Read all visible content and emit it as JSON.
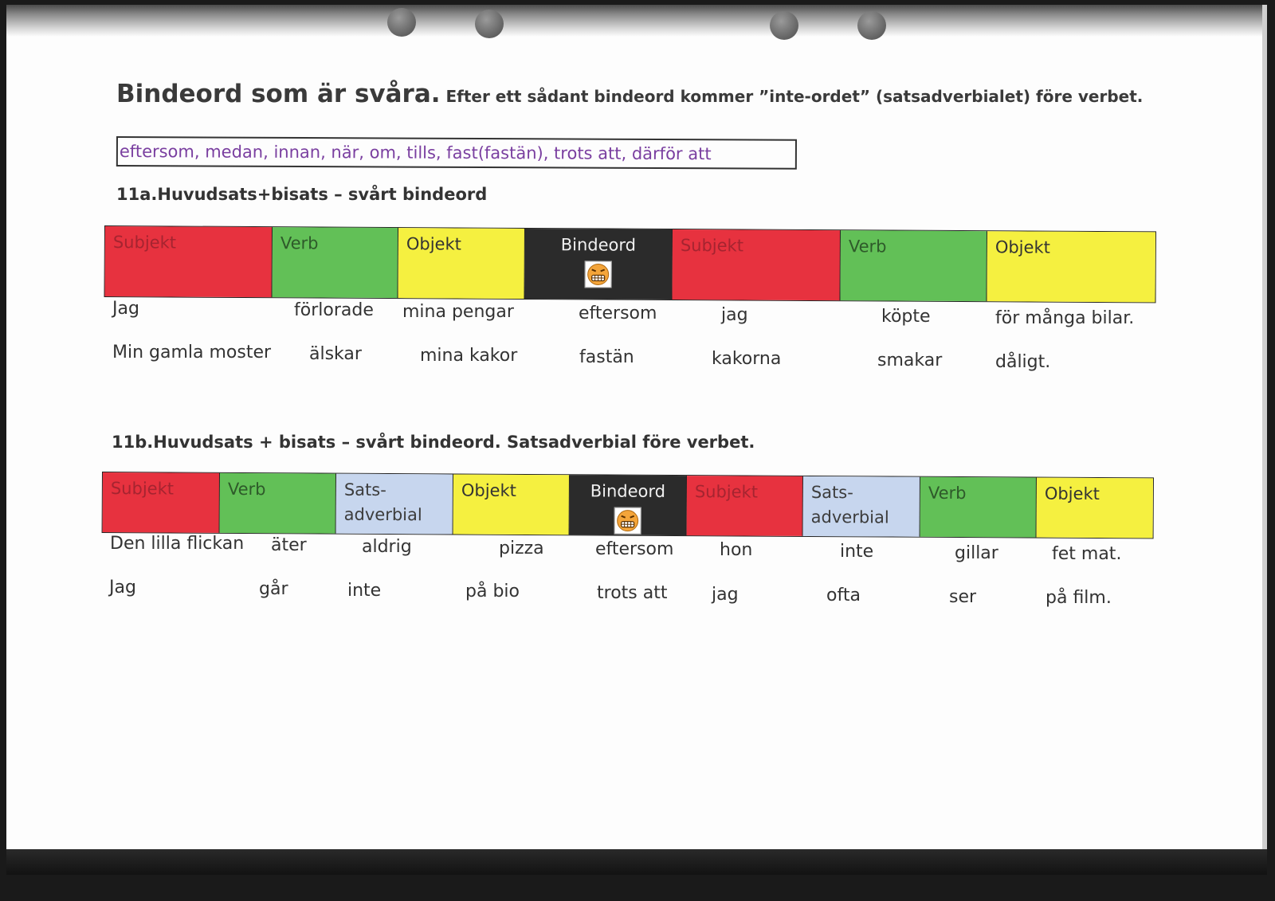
{
  "title": {
    "main": "Bindeord som är svåra.",
    "sub": " Efter ett sådant bindeord kommer ”inte-ordet” (satsadverbialet) före verbet."
  },
  "conjunctions": "eftersom,  medan,  innan,  när,  om,  tills,  fast(fastän),  trots att, därför att",
  "section_a": {
    "heading": "11a.Huvudsats+bisats – svårt bindeord",
    "headers": [
      "Subjekt",
      "Verb",
      "Objekt",
      "Bindeord",
      "Subjekt",
      "Verb",
      "Objekt"
    ],
    "rows": [
      [
        "Jag",
        "förlorade",
        "mina pengar",
        "eftersom",
        "jag",
        "köpte",
        "för många bilar."
      ],
      [
        "Min gamla moster",
        "älskar",
        "mina kakor",
        "fastän",
        "kakorna",
        "smakar",
        "dåligt."
      ]
    ]
  },
  "section_b": {
    "heading": "11b.Huvudsats + bisats – svårt bindeord. Satsadverbial före verbet.",
    "headers": [
      "Subjekt",
      "Verb",
      "Sats-\nadverbial",
      "Objekt",
      "Bindeord",
      "Subjekt",
      "Sats-\nadverbial",
      "Verb",
      "Objekt"
    ],
    "rows": [
      [
        "Den lilla flickan",
        "äter",
        "aldrig",
        "pizza",
        "eftersom",
        "hon",
        "inte",
        "gillar",
        "fet mat."
      ],
      [
        "Jag",
        "går",
        "inte",
        "på bio",
        "trots att",
        "jag",
        "ofta",
        "ser",
        "på film."
      ]
    ]
  },
  "emoji_icon": "grimacing-angry-face-icon",
  "colors": {
    "subjekt": "#e7323f",
    "verb": "#62c057",
    "objekt": "#f5f040",
    "satsadverbial": "#c7d6ee",
    "bindeord": "#2b2b2b",
    "conjunction_text": "#7a3fa0"
  }
}
